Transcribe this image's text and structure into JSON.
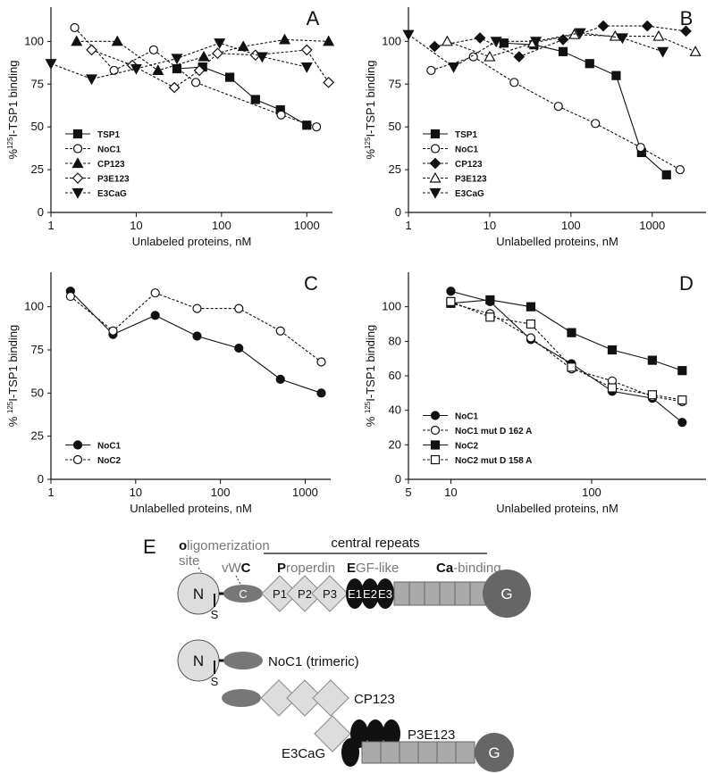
{
  "chart_data": [
    {
      "type": "line",
      "panel": "A",
      "xlabel": "Unlabeled proteins, nM",
      "ylabel": {
        "pre": "%",
        "sup": "125",
        "post": "I-TSP1 binding"
      },
      "xscale": "log",
      "xlim": [
        1,
        2000
      ],
      "ylim": [
        0,
        120
      ],
      "xticks": [
        1,
        10,
        100,
        1000
      ],
      "yticks": [
        0,
        25,
        50,
        75,
        100
      ],
      "legend": "lower left",
      "series": [
        {
          "name": "TSP1",
          "color": "#111111",
          "marker": "square",
          "filled": true,
          "dashed": false,
          "x": [
            30,
            60,
            125,
            250,
            490,
            1000
          ],
          "values": [
            84,
            85,
            79,
            66,
            60,
            51
          ]
        },
        {
          "name": "NoC1",
          "color": "#111111",
          "marker": "circle",
          "filled": false,
          "dashed": true,
          "x": [
            1.9,
            5.5,
            16,
            50,
            500,
            1300
          ],
          "values": [
            108,
            83,
            95,
            76,
            57,
            50
          ]
        },
        {
          "name": "CP123",
          "color": "#111111",
          "marker": "triangle-up",
          "filled": true,
          "dashed": true,
          "x": [
            2,
            6,
            18,
            62,
            180,
            550,
            1800
          ],
          "values": [
            100,
            100,
            83,
            91,
            97,
            101,
            100
          ]
        },
        {
          "name": "P3E123",
          "color": "#111111",
          "marker": "diamond",
          "filled": false,
          "dashed": true,
          "x": [
            3,
            9,
            28,
            55,
            90,
            250,
            1000,
            1800
          ],
          "values": [
            95,
            86,
            73,
            83,
            93,
            92,
            95,
            76
          ]
        },
        {
          "name": "E3CaG",
          "color": "#111111",
          "marker": "triangle-down",
          "filled": true,
          "dashed": true,
          "x": [
            1,
            3,
            10,
            30,
            95,
            300,
            1000
          ],
          "values": [
            87,
            78,
            84,
            90,
            99,
            91,
            85
          ]
        }
      ]
    },
    {
      "type": "line",
      "panel": "B",
      "xlabel": "Unlabelled proteins, nM",
      "ylabel": {
        "pre": "%",
        "sup": "125",
        "post": "I-TSP1 binding"
      },
      "xscale": "log",
      "xlim": [
        1,
        4600
      ],
      "ylim": [
        0,
        120
      ],
      "xticks": [
        1,
        10,
        100,
        1000
      ],
      "yticks": [
        0,
        25,
        50,
        75,
        100
      ],
      "legend": "lower left",
      "series": [
        {
          "name": "TSP1",
          "color": "#111111",
          "marker": "square",
          "filled": true,
          "dashed": false,
          "x": [
            15,
            35,
            80,
            170,
            360,
            740,
            1500
          ],
          "values": [
            99,
            98,
            94,
            87,
            80,
            35,
            22
          ]
        },
        {
          "name": "NoC1",
          "color": "#111111",
          "marker": "circle",
          "filled": false,
          "dashed": true,
          "x": [
            1.9,
            6.3,
            20,
            70,
            200,
            720,
            2200
          ],
          "values": [
            83,
            91,
            76,
            62,
            52,
            38,
            25
          ]
        },
        {
          "name": "CP123",
          "color": "#111111",
          "marker": "diamond",
          "filled": true,
          "dashed": true,
          "x": [
            2.1,
            7.6,
            23,
            80,
            250,
            870,
            2600
          ],
          "values": [
            97,
            102,
            91,
            101,
            109,
            109,
            106
          ]
        },
        {
          "name": "P3E123",
          "color": "#111111",
          "marker": "triangle-up",
          "filled": false,
          "dashed": true,
          "x": [
            3,
            10,
            34,
            110,
            350,
            1200,
            3400
          ],
          "values": [
            100,
            91,
            99,
            104,
            103,
            103,
            94
          ]
        },
        {
          "name": "E3CaG",
          "color": "#111111",
          "marker": "triangle-down",
          "filled": true,
          "dashed": true,
          "x": [
            1,
            3.6,
            12,
            37,
            130,
            430,
            1350
          ],
          "values": [
            104,
            85,
            100,
            100,
            105,
            102,
            94
          ]
        }
      ]
    },
    {
      "type": "line",
      "panel": "C",
      "xlabel": "Unlabelled proteins, nM",
      "ylabel": {
        "pre": "% ",
        "sup": "125",
        "post": "I-TSP1 binding"
      },
      "xscale": "log",
      "xlim": [
        1,
        2000
      ],
      "ylim": [
        0,
        120
      ],
      "xticks": [
        1,
        10,
        100,
        1000
      ],
      "yticks": [
        0,
        25,
        50,
        75,
        100
      ],
      "legend": "lower left",
      "series": [
        {
          "name": "NoC1",
          "color": "#111111",
          "marker": "circle",
          "filled": true,
          "dashed": false,
          "x": [
            1.7,
            5.4,
            17,
            53,
            165,
            510,
            1550
          ],
          "values": [
            109,
            84,
            95,
            83,
            76,
            58,
            50
          ]
        },
        {
          "name": "NoC2",
          "color": "#111111",
          "marker": "circle",
          "filled": false,
          "dashed": true,
          "x": [
            1.7,
            5.4,
            17,
            53,
            165,
            510,
            1550
          ],
          "values": [
            106,
            86,
            108,
            99,
            99,
            86,
            68
          ]
        }
      ]
    },
    {
      "type": "line",
      "panel": "D",
      "xlabel": "Unlabelled proteins, nM",
      "ylabel": {
        "pre": "% ",
        "sup": "125",
        "post": "I-TSP1 binding"
      },
      "xscale": "log",
      "xlim": [
        5,
        650
      ],
      "ylim": [
        0,
        120
      ],
      "xticks": [
        5,
        10,
        100
      ],
      "yticks": [
        0,
        20,
        40,
        60,
        80,
        100
      ],
      "legend": "lower left",
      "series": [
        {
          "name": "NoC1",
          "color": "#111111",
          "marker": "circle",
          "filled": true,
          "dashed": false,
          "x": [
            10,
            19,
            37,
            72,
            140,
            270,
            440
          ],
          "values": [
            109,
            103,
            81,
            67,
            51,
            47,
            33
          ]
        },
        {
          "name": "NoC1 mut D 162 A",
          "color": "#111111",
          "marker": "circle",
          "filled": false,
          "dashed": true,
          "x": [
            10,
            19,
            37,
            72,
            140,
            270,
            440
          ],
          "values": [
            102,
            96,
            82,
            64,
            57,
            48,
            45
          ]
        },
        {
          "name": "NoC2",
          "color": "#111111",
          "marker": "square",
          "filled": true,
          "dashed": false,
          "x": [
            10,
            19,
            37,
            72,
            140,
            270,
            440
          ],
          "values": [
            102,
            104,
            100,
            85,
            75,
            69,
            63
          ]
        },
        {
          "name": "NoC2 mut D 158 A",
          "color": "#111111",
          "marker": "square",
          "filled": false,
          "dashed": true,
          "x": [
            10,
            19,
            37,
            72,
            140,
            270,
            440
          ],
          "values": [
            103,
            94,
            90,
            65,
            53,
            49,
            46
          ]
        }
      ]
    }
  ],
  "diagram": {
    "label": "E",
    "oligomerization": {
      "bold": "o",
      "rest": "ligomerization"
    },
    "site": "site",
    "vwc": {
      "rest": "vW",
      "bold": "C"
    },
    "central_repeats": "central repeats",
    "properdin": {
      "bold": "P",
      "rest": "roperdin"
    },
    "egf": {
      "bold": "E",
      "rest": "GF-like"
    },
    "ca": {
      "bold": "Ca",
      "rest": "-binding"
    },
    "domains": {
      "n": "N",
      "s": "S",
      "c": "C",
      "p1": "P1",
      "p2": "P2",
      "p3": "P3",
      "e1": "E1",
      "e2": "E2",
      "e3": "E3",
      "g": "G"
    },
    "constructs": [
      "NoC1 (trimeric)",
      "CP123",
      "P3E123",
      "E3CaG"
    ]
  }
}
